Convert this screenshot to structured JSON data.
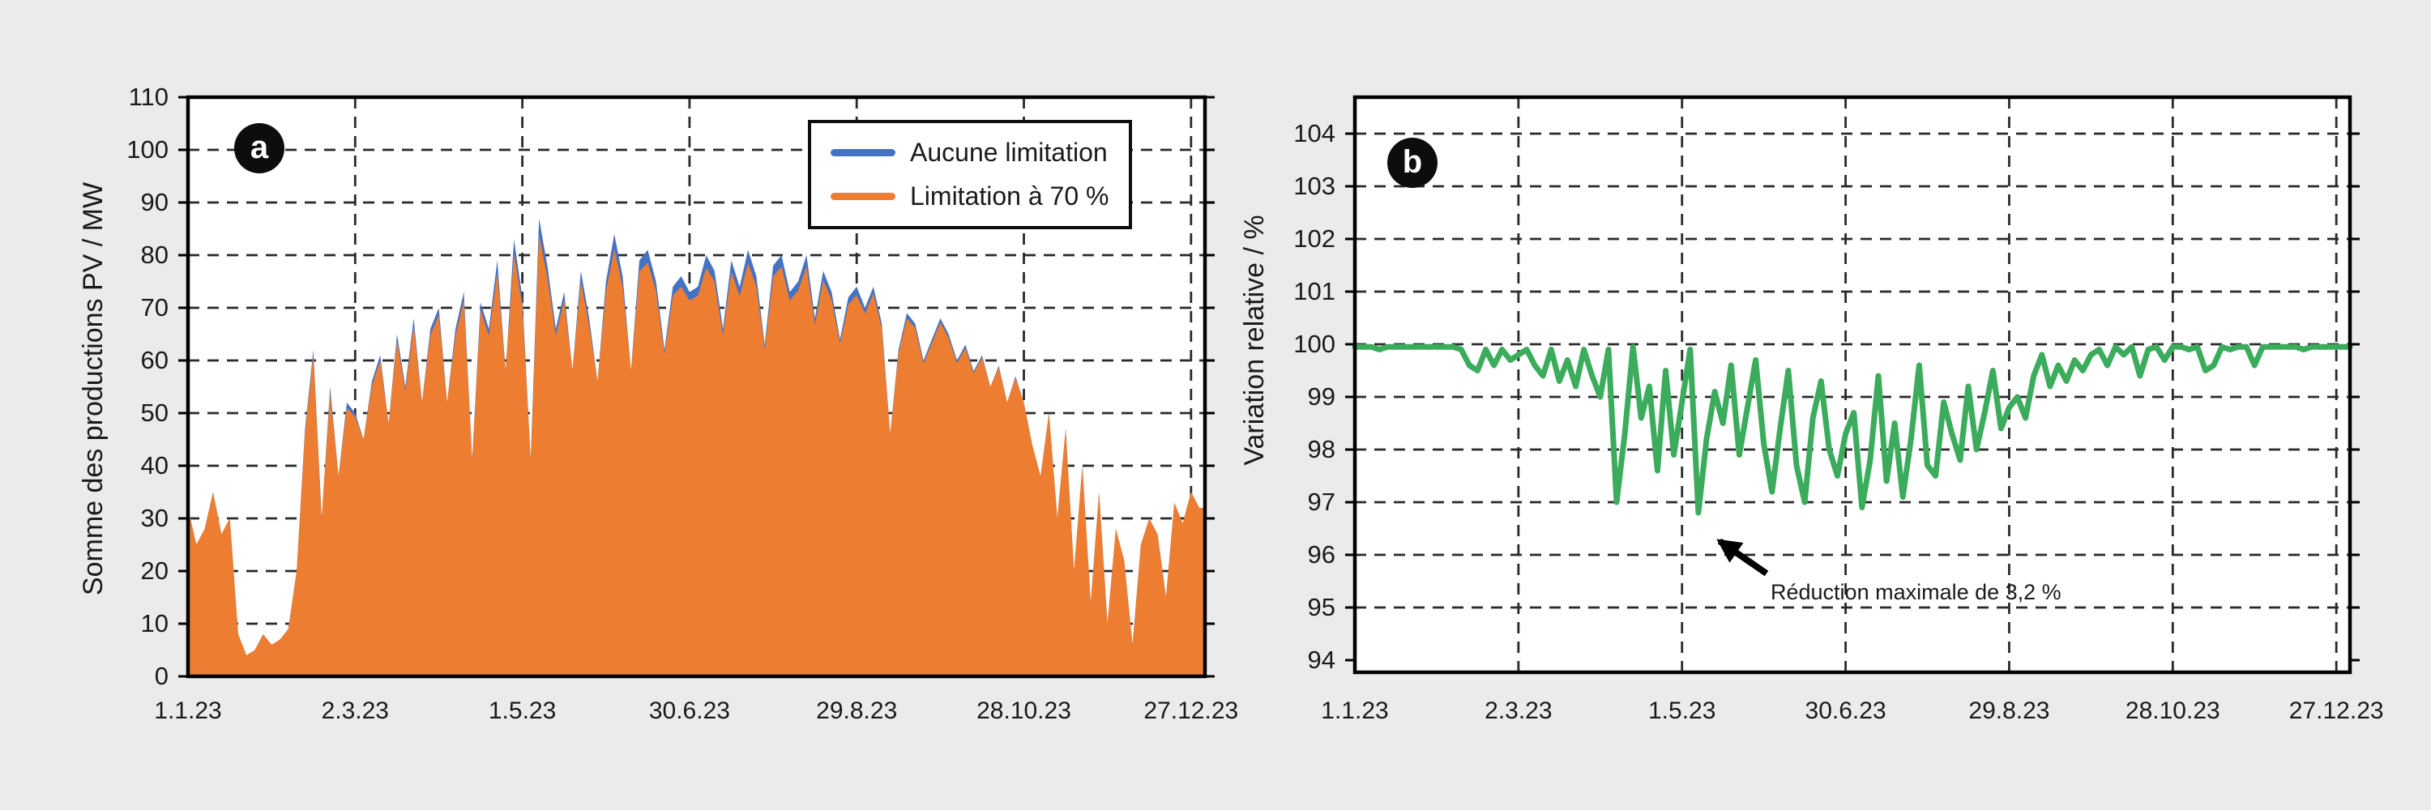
{
  "figure": {
    "background": "#EBEBEB",
    "plot_background": "#FFFFFF"
  },
  "chart_data": [
    {
      "id": "a",
      "badge": "a",
      "type": "area",
      "ylabel": "Somme des productions PV / MW",
      "ylim": [
        0,
        110
      ],
      "yticks": [
        0,
        10,
        20,
        30,
        40,
        50,
        60,
        70,
        80,
        90,
        100,
        110
      ],
      "grid_yticks": [
        10,
        20,
        30,
        40,
        50,
        60,
        70,
        80,
        90,
        100
      ],
      "xticks": {
        "days": [
          0,
          60,
          120,
          180,
          240,
          300,
          360
        ],
        "labels": [
          "1.1.23",
          "2.3.23",
          "1.5.23",
          "30.6.23",
          "29.8.23",
          "28.10.23",
          "27.12.23"
        ]
      },
      "x_step_days": 3,
      "x_total_days": 365,
      "grid": true,
      "legend_position": "top-right",
      "legend": [
        {
          "label": "Aucune limitation",
          "color": "#4472C4"
        },
        {
          "label": "Limitation à 70 %",
          "color": "#ED7D31"
        }
      ],
      "series": [
        {
          "name": "Aucune limitation",
          "color": "#4472C4",
          "values": [
            32,
            25,
            28,
            35,
            27,
            30,
            8,
            4,
            5,
            8,
            6,
            7,
            9,
            20,
            47,
            62,
            30,
            55,
            38,
            52,
            50,
            45,
            56,
            61,
            48,
            65,
            55,
            68,
            52,
            66,
            70,
            52,
            66,
            73,
            41,
            71,
            66,
            79,
            58,
            83,
            72,
            41,
            87,
            78,
            66,
            73,
            58,
            77,
            68,
            56,
            75,
            84,
            76,
            58,
            79,
            81,
            75,
            62,
            74,
            76,
            73,
            74,
            80,
            77,
            66,
            79,
            74,
            81,
            76,
            63,
            78,
            80,
            73,
            75,
            80,
            68,
            77,
            73,
            64,
            72,
            74,
            70,
            74,
            67,
            46,
            62,
            69,
            67,
            60,
            64,
            68,
            65,
            60,
            63,
            58,
            61,
            55,
            59,
            52,
            57,
            52,
            44,
            38,
            50,
            30,
            47,
            20,
            40,
            14,
            35,
            10,
            28,
            22,
            6,
            25,
            30,
            27,
            15,
            33,
            29,
            35,
            32
          ]
        },
        {
          "name": "Limitation à 70 %",
          "color": "#ED7D31",
          "values": [
            32,
            25,
            28,
            35,
            27,
            30,
            8,
            4,
            5,
            8,
            6,
            7,
            9,
            20,
            46.3,
            61,
            30,
            54,
            38,
            51,
            49.3,
            45,
            55.2,
            60,
            48,
            63.8,
            54.2,
            66.7,
            52,
            64.8,
            68.6,
            52,
            64.7,
            71.5,
            41,
            69.6,
            64.7,
            76.8,
            58,
            80.3,
            70.4,
            41,
            83.9,
            75.8,
            64.7,
            71.5,
            58,
            75,
            66.6,
            56,
            73.2,
            81.2,
            74,
            58,
            76.9,
            78.6,
            73.2,
            61.2,
            72.3,
            74,
            71.4,
            72.3,
            77.6,
            75,
            64.8,
            76.9,
            72.2,
            78.5,
            74,
            62.2,
            75.9,
            77.8,
            71.4,
            73.3,
            77.9,
            66.8,
            75.2,
            71.5,
            63.2,
            70.6,
            72.4,
            68.9,
            72.7,
            66.1,
            46,
            61.3,
            68,
            66.2,
            59.4,
            63.3,
            67.2,
            64.3,
            59.5,
            62.4,
            57.6,
            60.6,
            55,
            58.7,
            52,
            56.7,
            52,
            44,
            38,
            50,
            30,
            47,
            20,
            40,
            14,
            35,
            10,
            28,
            22,
            6,
            25,
            30,
            27,
            15,
            33,
            29,
            35,
            32
          ]
        }
      ]
    },
    {
      "id": "b",
      "badge": "b",
      "type": "line",
      "ylabel": "Variation relative / %",
      "ylim": [
        93.8,
        104.7
      ],
      "yticks": [
        94,
        95,
        96,
        97,
        98,
        99,
        100,
        101,
        102,
        103,
        104
      ],
      "grid_yticks": [
        95,
        96,
        97,
        98,
        99,
        100,
        101,
        102,
        103,
        104
      ],
      "xticks": {
        "days": [
          0,
          60,
          120,
          180,
          240,
          300,
          360
        ],
        "labels": [
          "1.1.23",
          "2.3.23",
          "1.5.23",
          "30.6.23",
          "29.8.23",
          "28.10.23",
          "27.12.23"
        ]
      },
      "x_step_days": 3,
      "x_total_days": 365,
      "grid": true,
      "annotation": {
        "text": "Réduction maximale de 3,2 %",
        "points_to_value": 96.8
      },
      "series": [
        {
          "name": "Variation relative",
          "color": "#3BAB5C",
          "values": [
            99.95,
            99.95,
            99.95,
            99.9,
            99.95,
            99.95,
            99.95,
            99.95,
            99.95,
            99.95,
            99.95,
            99.95,
            99.95,
            99.9,
            99.6,
            99.5,
            99.9,
            99.6,
            99.9,
            99.7,
            99.8,
            99.9,
            99.6,
            99.4,
            99.9,
            99.3,
            99.7,
            99.2,
            99.9,
            99.4,
            99.0,
            99.9,
            97.0,
            98.3,
            99.95,
            98.6,
            99.2,
            97.6,
            99.5,
            97.9,
            98.9,
            99.9,
            96.8,
            98.2,
            99.1,
            98.5,
            99.6,
            97.9,
            98.8,
            99.7,
            98.1,
            97.2,
            98.4,
            99.5,
            97.7,
            97.0,
            98.6,
            99.3,
            98.0,
            97.5,
            98.3,
            98.7,
            96.9,
            97.8,
            99.4,
            97.4,
            98.5,
            97.1,
            98.2,
            99.6,
            97.7,
            97.5,
            98.9,
            98.3,
            97.8,
            99.2,
            98.0,
            98.7,
            99.5,
            98.4,
            98.8,
            99.0,
            98.6,
            99.4,
            99.8,
            99.2,
            99.6,
            99.3,
            99.7,
            99.5,
            99.8,
            99.9,
            99.6,
            99.95,
            99.8,
            99.95,
            99.4,
            99.9,
            99.95,
            99.7,
            99.95,
            99.95,
            99.9,
            99.95,
            99.5,
            99.6,
            99.95,
            99.9,
            99.95,
            99.95,
            99.6,
            99.95,
            99.95,
            99.95,
            99.95,
            99.95,
            99.9,
            99.95,
            99.95,
            99.95,
            99.95,
            99.95
          ]
        }
      ]
    }
  ]
}
